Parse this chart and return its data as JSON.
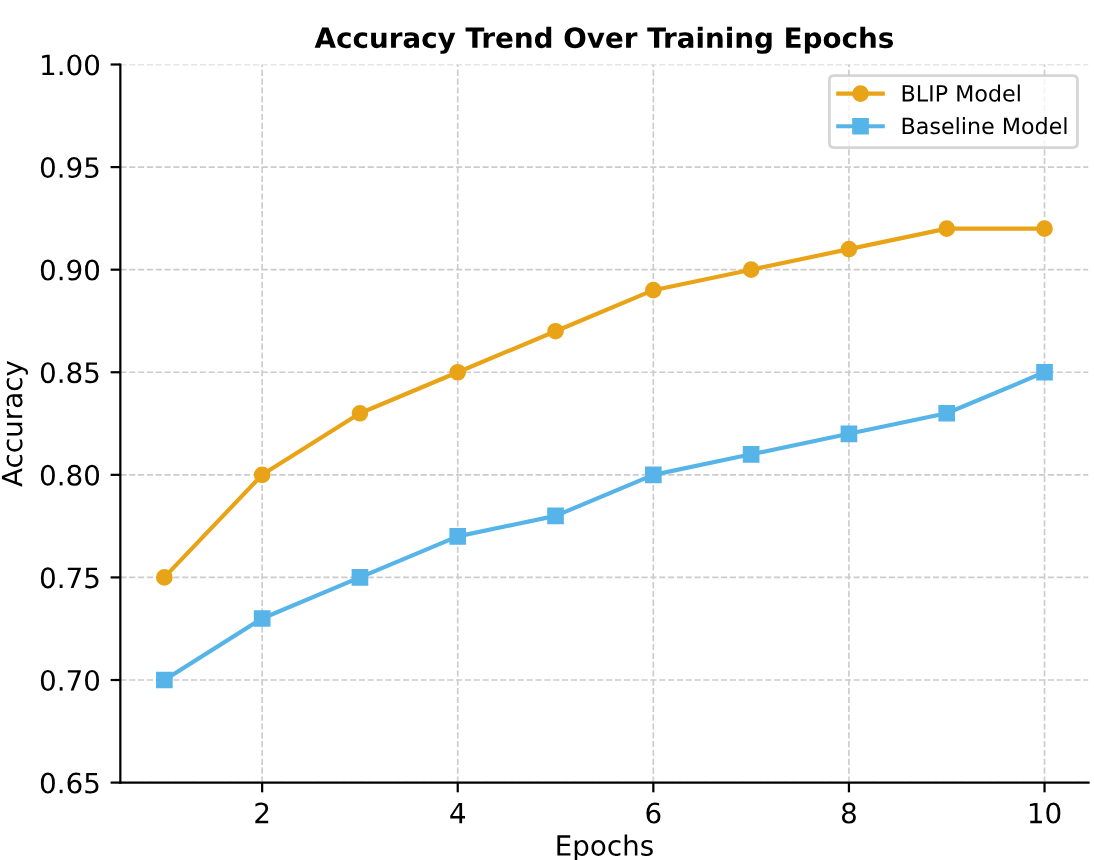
{
  "chart_data": {
    "type": "line",
    "title": "Accuracy Trend Over Training Epochs",
    "xlabel": "Epochs",
    "ylabel": "Accuracy",
    "x": [
      1,
      2,
      3,
      4,
      5,
      6,
      7,
      8,
      9,
      10
    ],
    "series": [
      {
        "name": "BLIP Model",
        "color": "#e8a317",
        "marker": "circle",
        "values": [
          0.75,
          0.8,
          0.83,
          0.85,
          0.87,
          0.89,
          0.9,
          0.91,
          0.92,
          0.92
        ]
      },
      {
        "name": "Baseline Model",
        "color": "#56b4e9",
        "marker": "square",
        "values": [
          0.7,
          0.73,
          0.75,
          0.77,
          0.78,
          0.8,
          0.81,
          0.82,
          0.83,
          0.85
        ]
      }
    ],
    "xlim": [
      0.55,
      10.45
    ],
    "xticks": [
      2,
      4,
      6,
      8,
      10
    ],
    "ylim": [
      0.65,
      1.0
    ],
    "yticks": [
      {
        "value": 0.65,
        "label": "0.65"
      },
      {
        "value": 0.7,
        "label": "0.70"
      },
      {
        "value": 0.75,
        "label": "0.75"
      },
      {
        "value": 0.8,
        "label": "0.80"
      },
      {
        "value": 0.85,
        "label": "0.85"
      },
      {
        "value": 0.9,
        "label": "0.90"
      },
      {
        "value": 0.95,
        "label": "0.95"
      },
      {
        "value": 1.0,
        "label": "1.00"
      }
    ],
    "grid": true,
    "legend": "top right",
    "line_style": "solid"
  }
}
